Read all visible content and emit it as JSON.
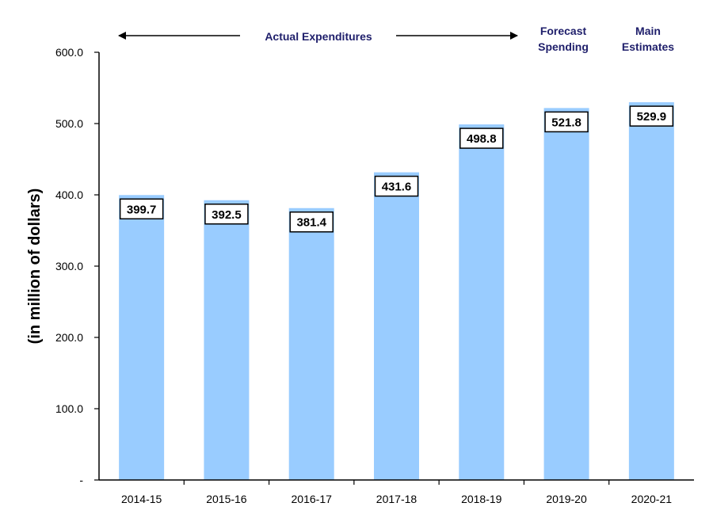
{
  "chart_data": {
    "type": "bar",
    "categories": [
      "2014-15",
      "2015-16",
      "2016-17",
      "2017-18",
      "2018-19",
      "2019-20",
      "2020-21"
    ],
    "values": [
      399.7,
      392.5,
      381.4,
      431.6,
      498.8,
      521.8,
      529.9
    ],
    "value_labels": [
      "399.7",
      "392.5",
      "381.4",
      "431.6",
      "498.8",
      "521.8",
      "529.9"
    ],
    "title": "",
    "xlabel": "",
    "ylabel": "(in million of dollars)",
    "ylim": [
      0,
      600
    ],
    "yticks": [
      0,
      100,
      200,
      300,
      400,
      500,
      600
    ],
    "ytick_labels": [
      "-",
      "100.0",
      "200.0",
      "300.0",
      "400.0",
      "500.0",
      "600.0"
    ],
    "grid": false,
    "bar_color": "#99ccff",
    "header_color": "#1f1f6b",
    "period_annotations": {
      "actual": "Actual Expenditures",
      "forecast_line1": "Forecast",
      "forecast_line2": "Spending",
      "main_line1": "Main",
      "main_line2": "Estimates"
    }
  }
}
